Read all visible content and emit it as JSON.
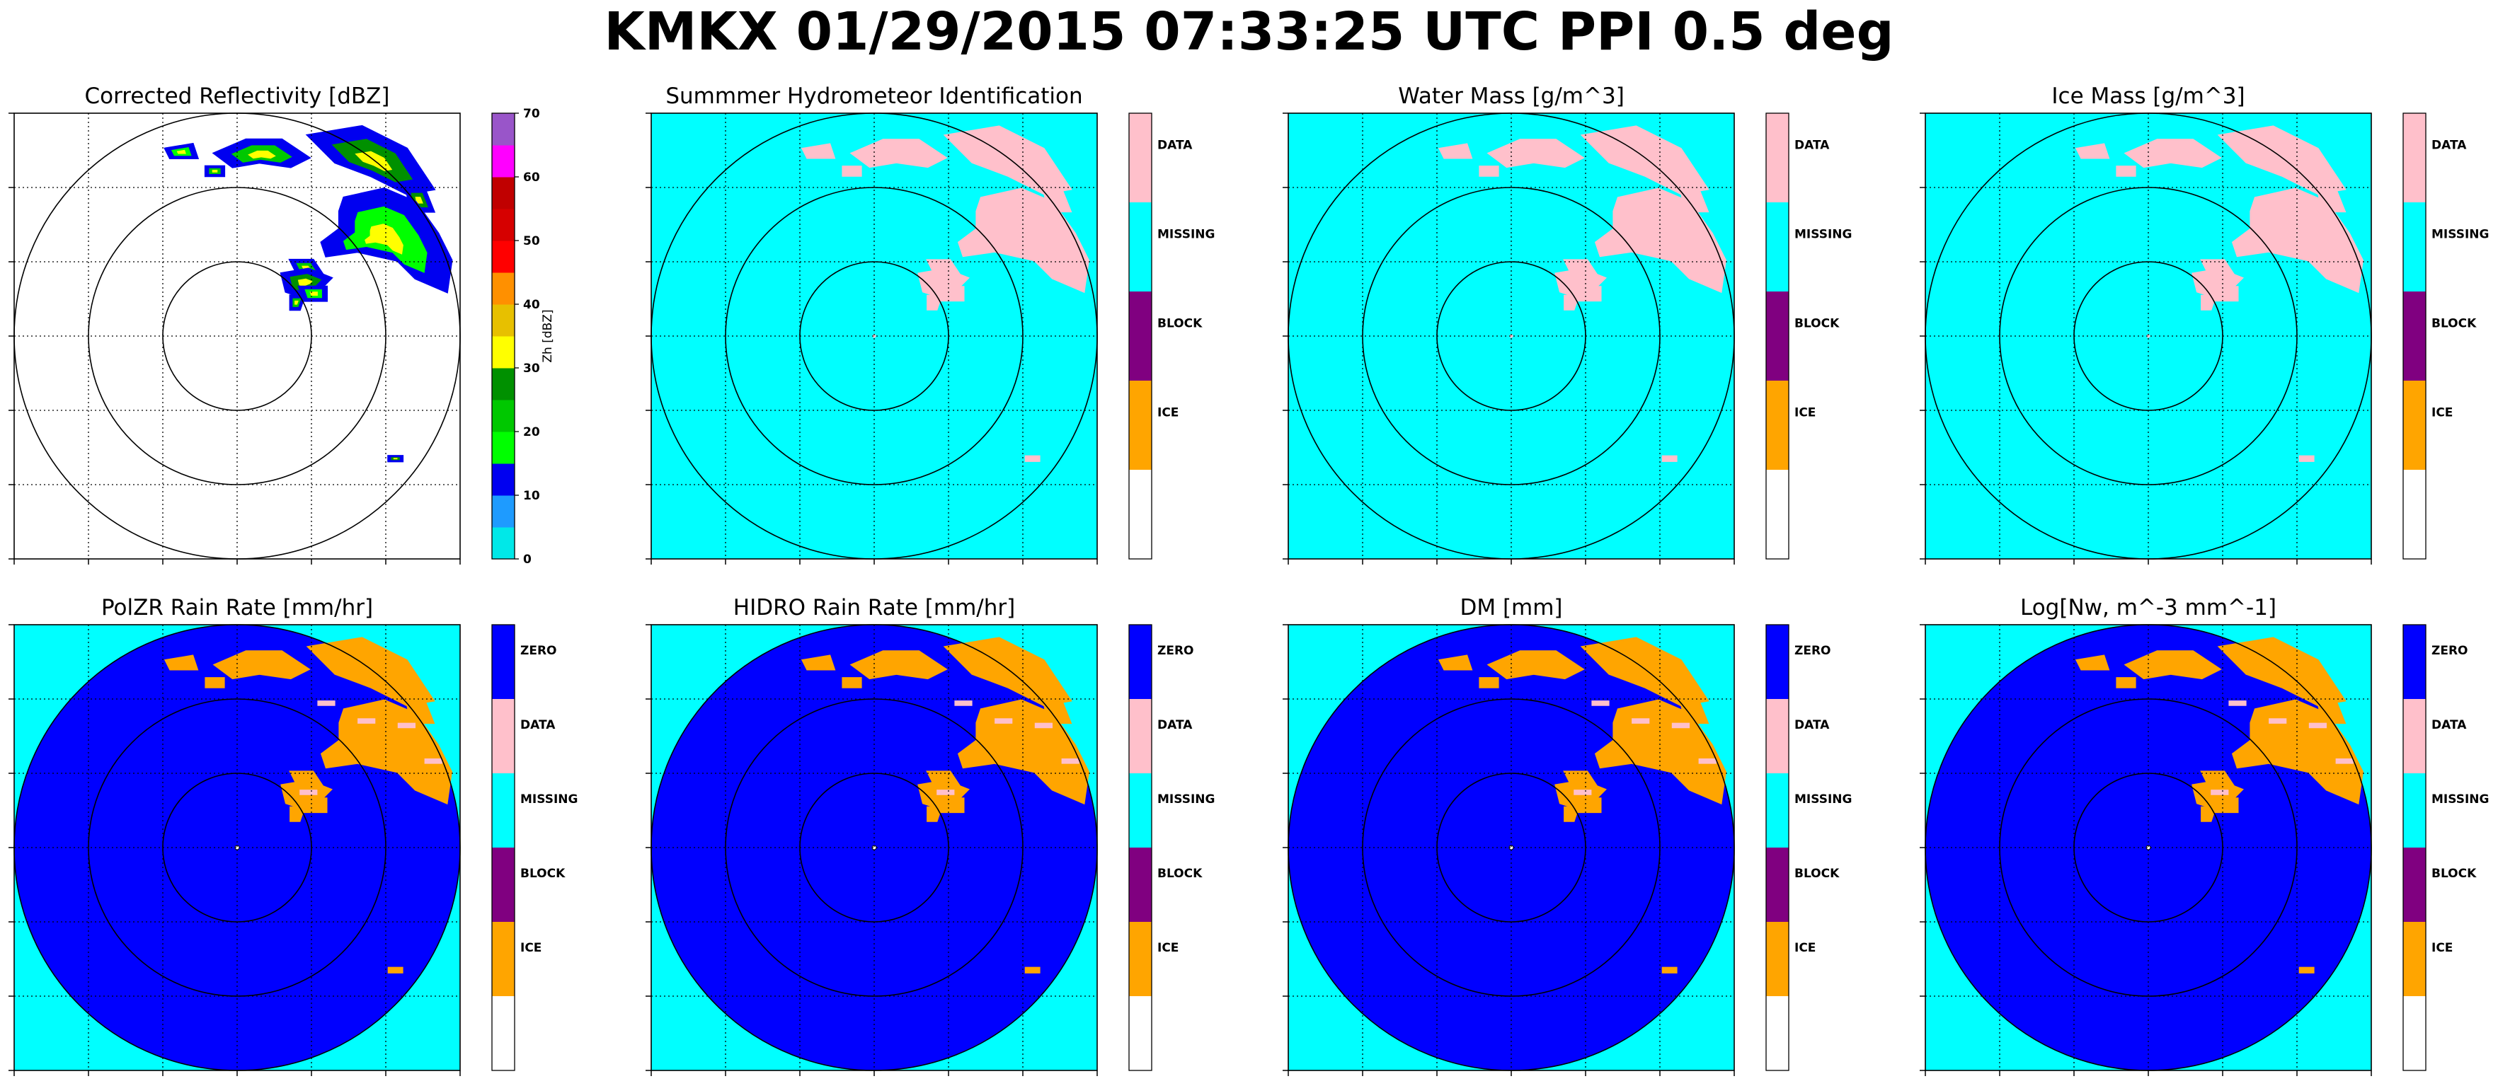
{
  "suptitle": "KMKX 01/29/2015 07:33:25 UTC PPI 0.5 deg",
  "colors": {
    "zero": "#0000ff",
    "data": "#ffc0cb",
    "missing": "#00ffff",
    "block": "#800080",
    "ice": "#ffa500",
    "empty": "#ffffff"
  },
  "reflectivity_scale": {
    "ticks": [
      "0",
      "10",
      "20",
      "30",
      "40",
      "50",
      "60",
      "70"
    ],
    "label": "Zh [dBZ]",
    "colors": [
      "#00e8e8",
      "#1e9bff",
      "#0000f0",
      "#00ff00",
      "#00c800",
      "#009000",
      "#ffff00",
      "#e7c000",
      "#ff9000",
      "#ff0000",
      "#d60000",
      "#c00000",
      "#ff00ff",
      "#9955c9"
    ]
  },
  "chart_data": [
    {
      "type": "heatmap",
      "title": "Corrected Reflectivity [dBZ]",
      "field": "reflectivity",
      "colorbar_label": "Zh [dBZ]",
      "range": [
        0,
        70
      ],
      "colorbar_ticks": [
        0,
        10,
        20,
        30,
        40,
        50,
        60,
        70
      ]
    },
    {
      "type": "heatmap",
      "title": "Summmer Hydrometeor Identification",
      "field": "categorical",
      "categories": [
        "DATA",
        "MISSING",
        "BLOCK",
        "ICE"
      ]
    },
    {
      "type": "heatmap",
      "title": "Water Mass [g/m^3]",
      "field": "categorical",
      "categories": [
        "DATA",
        "MISSING",
        "BLOCK",
        "ICE"
      ]
    },
    {
      "type": "heatmap",
      "title": "Ice Mass [g/m^3]",
      "field": "categorical",
      "categories": [
        "DATA",
        "MISSING",
        "BLOCK",
        "ICE"
      ]
    },
    {
      "type": "heatmap",
      "title": "PolZR Rain Rate [mm/hr]",
      "field": "categorical",
      "categories": [
        "ZERO",
        "DATA",
        "MISSING",
        "BLOCK",
        "ICE"
      ]
    },
    {
      "type": "heatmap",
      "title": "HIDRO Rain Rate [mm/hr]",
      "field": "categorical",
      "categories": [
        "ZERO",
        "DATA",
        "MISSING",
        "BLOCK",
        "ICE"
      ]
    },
    {
      "type": "heatmap",
      "title": "DM [mm]",
      "field": "categorical",
      "categories": [
        "ZERO",
        "DATA",
        "MISSING",
        "BLOCK",
        "ICE"
      ]
    },
    {
      "type": "heatmap",
      "title": "Log[Nw, m^-3 mm^-1]",
      "field": "categorical",
      "categories": [
        "ZERO",
        "DATA",
        "MISSING",
        "BLOCK",
        "ICE"
      ]
    }
  ]
}
